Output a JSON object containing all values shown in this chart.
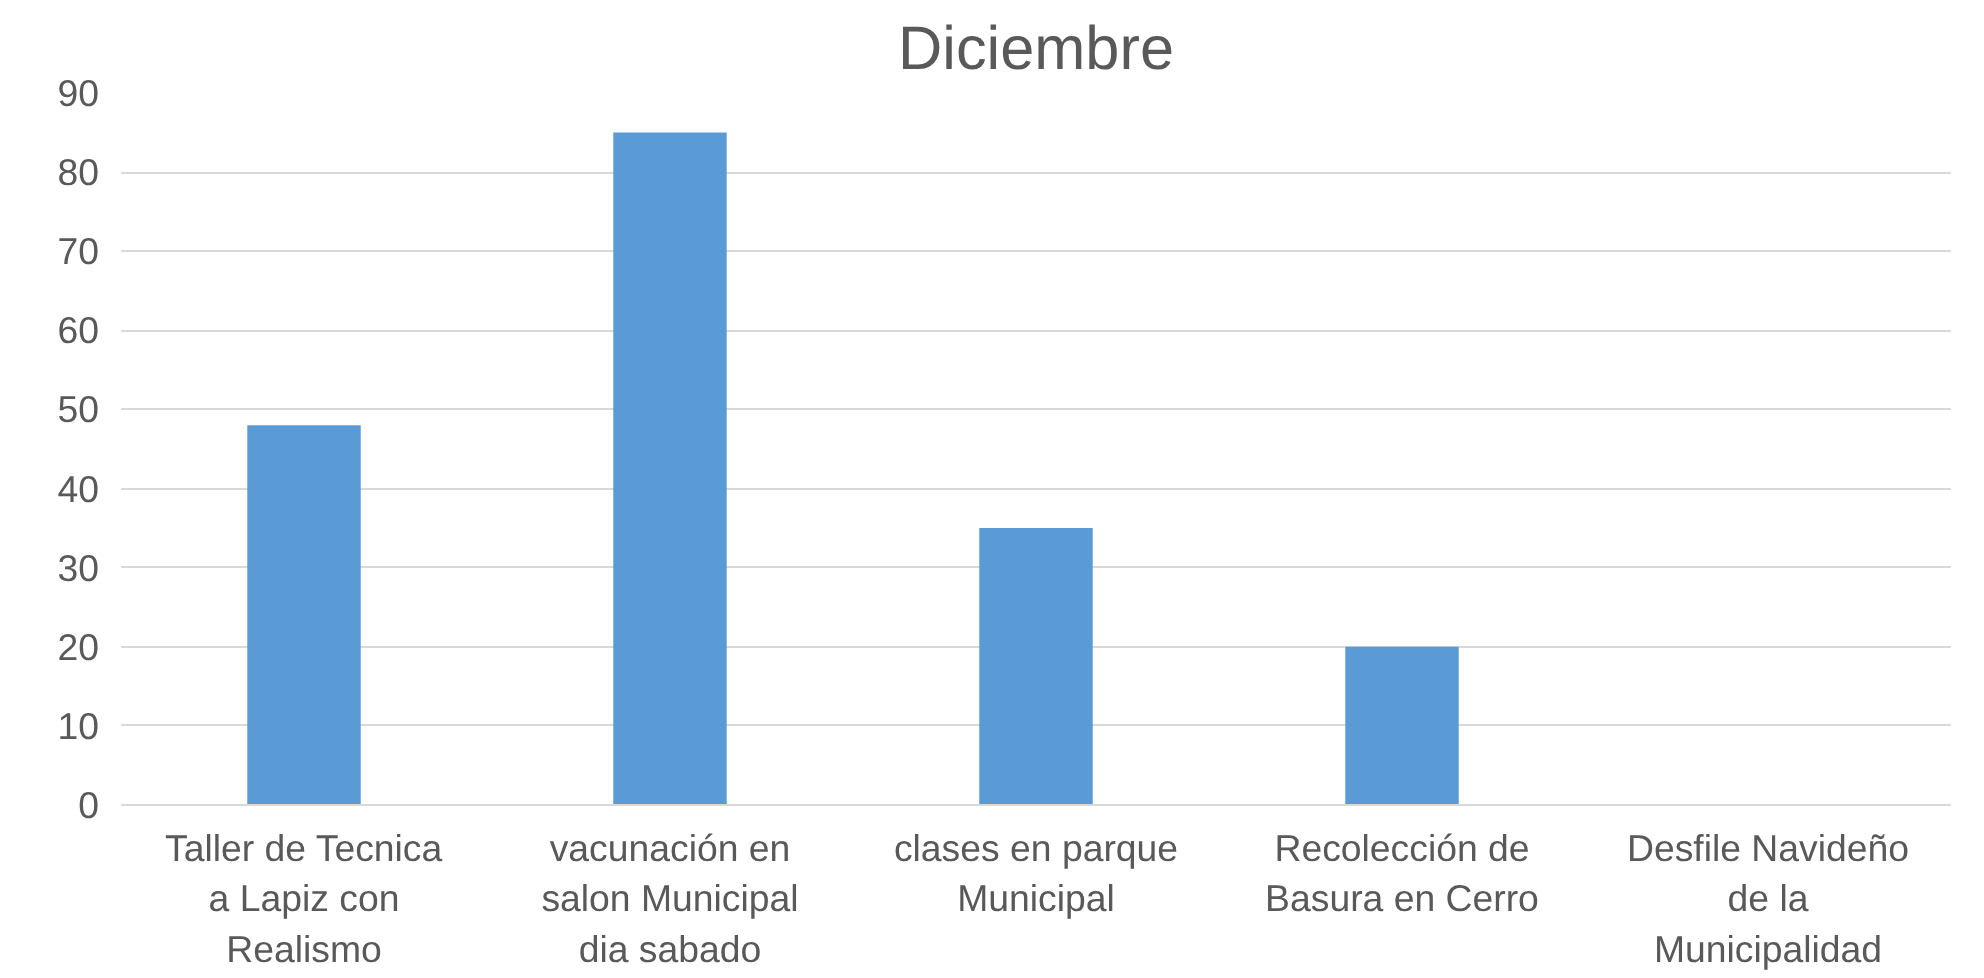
{
  "chart_data": {
    "type": "bar",
    "title": "Diciembre",
    "categories": [
      "Taller de Tecnica a Lapiz con Realismo",
      "vacunación en salon Municipal dia sabado",
      "clases en parque Municipal",
      "Recolección de Basura en Cerro",
      "Desfile Navideño de la Municipalidad"
    ],
    "values": [
      48,
      85,
      35,
      20,
      0
    ],
    "color": "#5b9bd5",
    "ylim": [
      0,
      90
    ],
    "yticks": [
      0,
      10,
      20,
      30,
      40,
      50,
      60,
      70,
      80,
      90
    ],
    "grid": "y"
  }
}
